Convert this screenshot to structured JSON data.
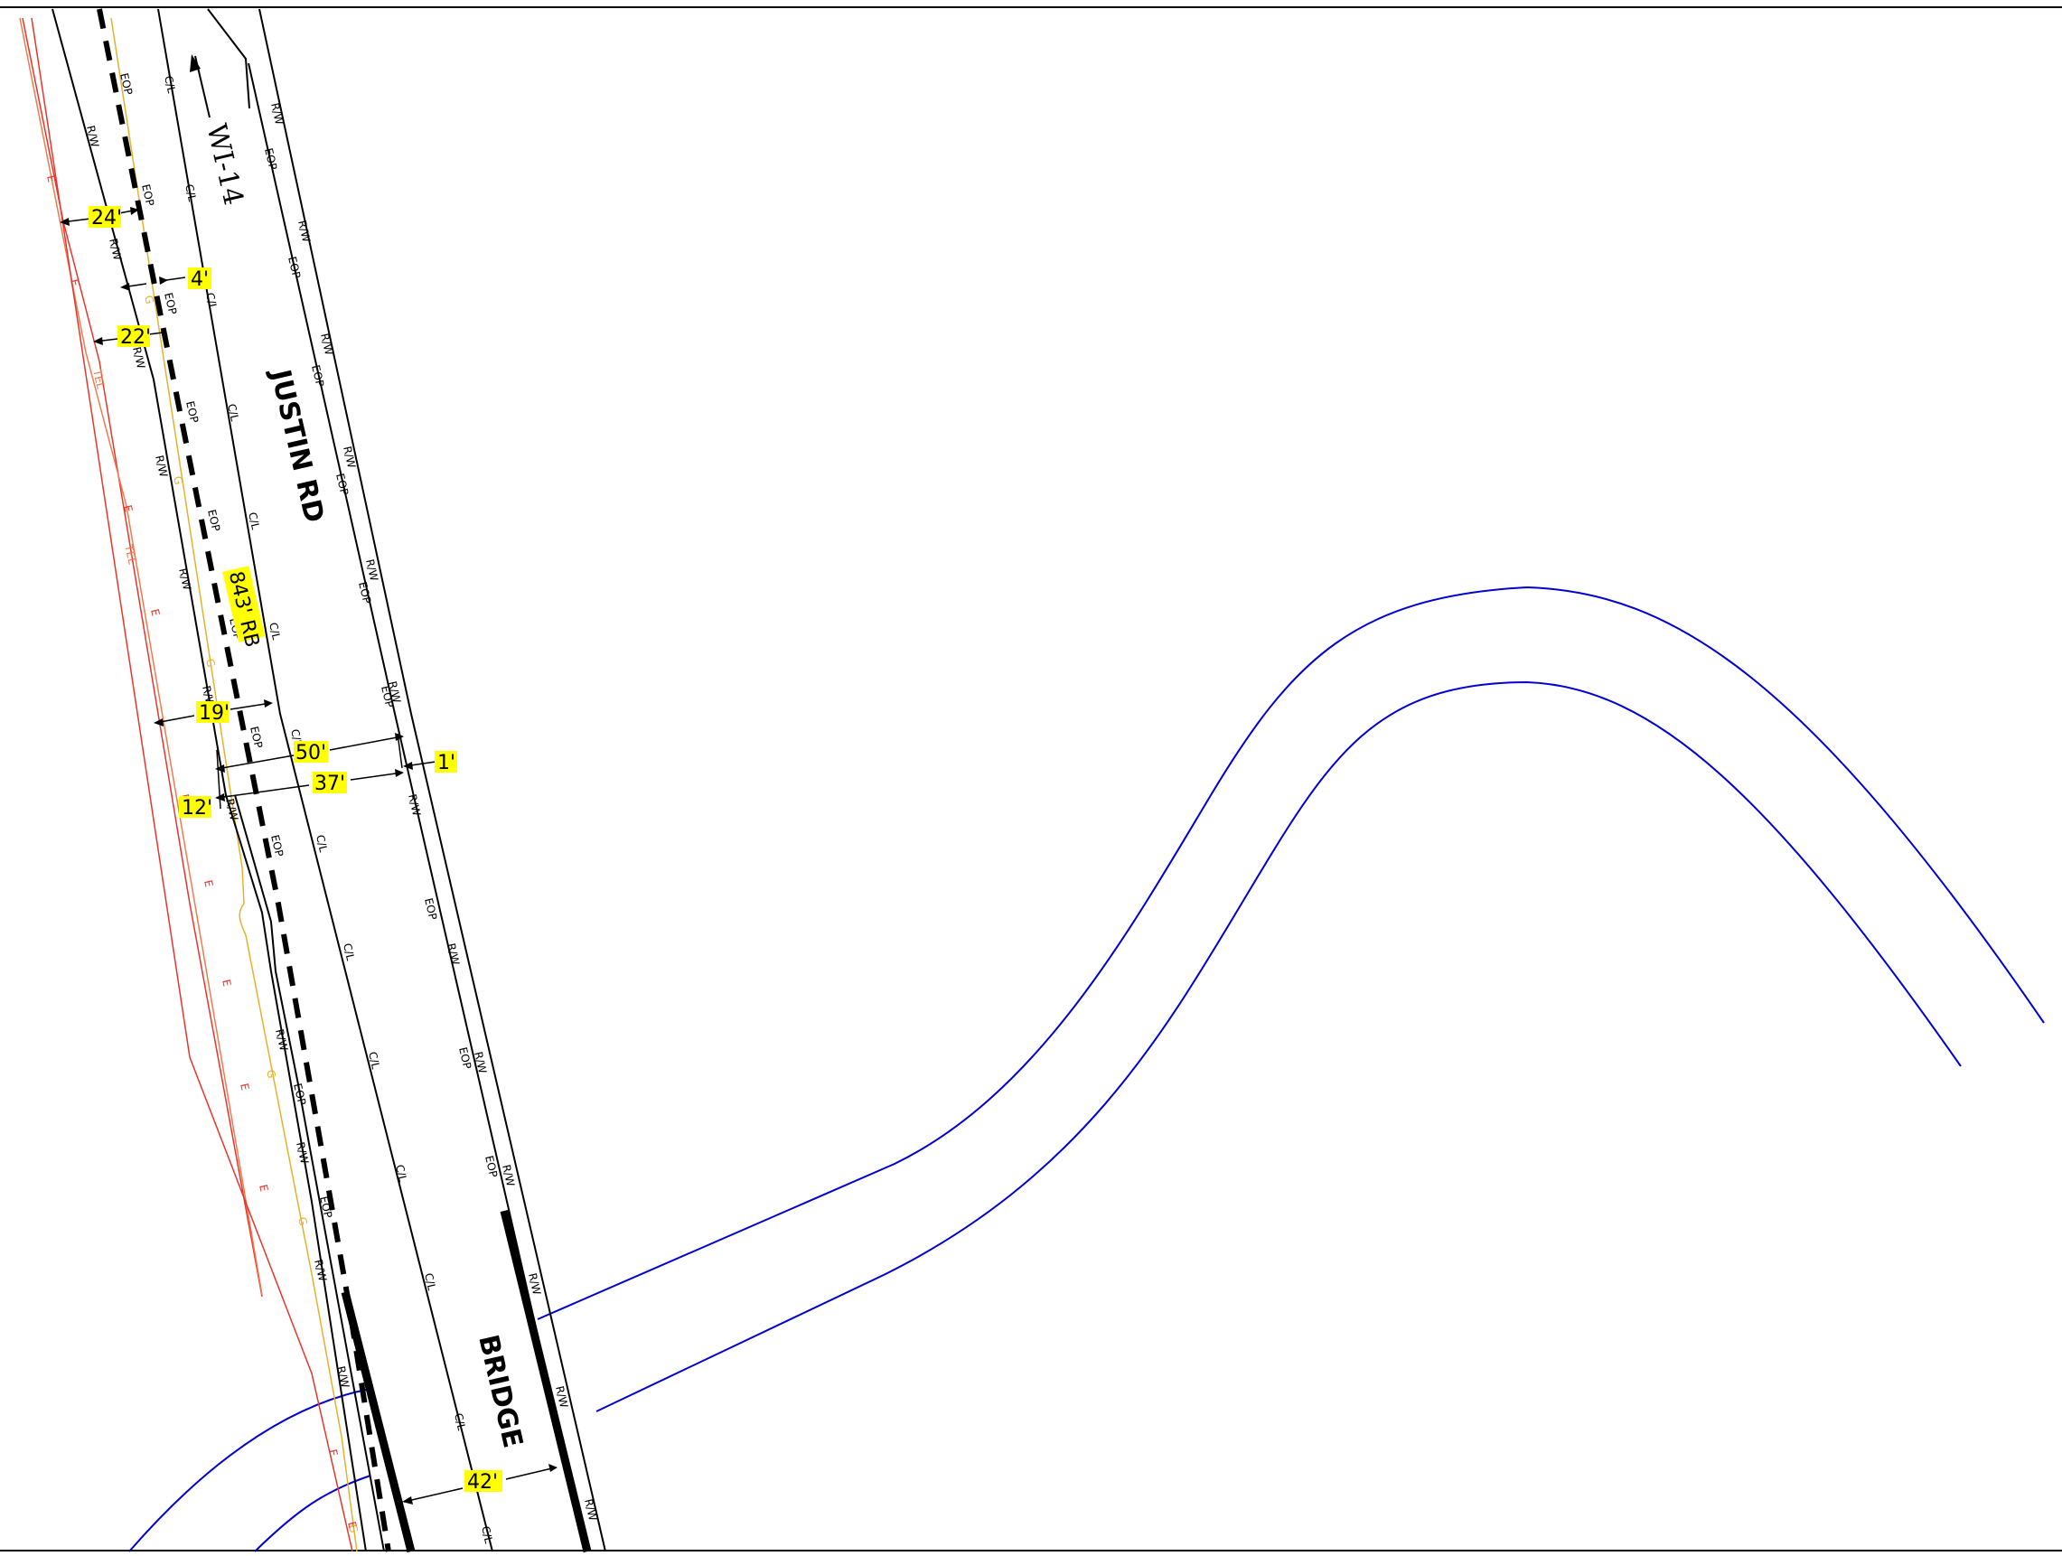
{
  "road": {
    "name": "JUSTIN RD",
    "structure": "BRIDGE",
    "direction_sign": "WI-14"
  },
  "line_codes": {
    "right_of_way": "R/W",
    "centerline": "C/L",
    "edge_of_pavement": "EOP",
    "electric": "E",
    "telephone": "TEL",
    "gas": "G"
  },
  "dimensions": {
    "d24": "24'",
    "d4": "4'",
    "d22": "22'",
    "d843": "843' RB",
    "d19": "19'",
    "d50": "50'",
    "d1": "1'",
    "d37": "37'",
    "d12": "12'",
    "d42": "42'"
  },
  "colors": {
    "linework": "#000000",
    "dimension_highlight": "#ffff00",
    "electric": "#e8352b",
    "telephone": "#f07a50",
    "gas": "#e8b12a",
    "stream": "#0000d0"
  }
}
